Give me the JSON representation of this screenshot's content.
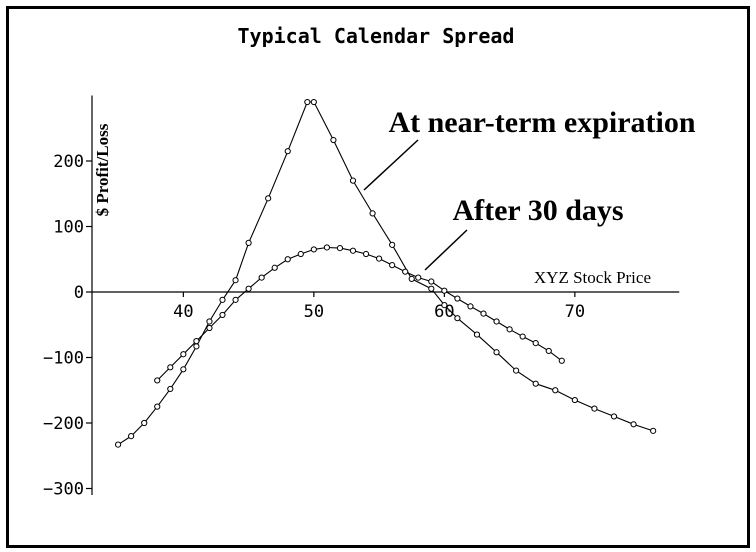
{
  "chart_data": {
    "type": "line",
    "title": "Typical Calendar Spread",
    "xlabel": "XYZ Stock Price",
    "ylabel": "$ Profit/Loss",
    "xlim": [
      33,
      78
    ],
    "ylim": [
      -310,
      300
    ],
    "xticks": [
      40,
      50,
      60,
      70
    ],
    "yticks": [
      200,
      100,
      0,
      -100,
      -200,
      -300
    ],
    "series": [
      {
        "name": "At near-term expiration",
        "x": [
          35,
          36,
          37,
          38,
          39,
          40,
          41,
          42,
          43,
          44,
          45,
          46.5,
          48,
          49.5,
          50,
          51.5,
          53,
          54.5,
          56,
          57.5,
          59,
          60,
          61,
          62.5,
          64,
          65.5,
          67,
          68.5,
          70,
          71.5,
          73,
          74.5,
          76
        ],
        "y": [
          -233,
          -220,
          -200,
          -175,
          -148,
          -118,
          -83,
          -45,
          -12,
          18,
          75,
          143,
          215,
          290,
          290,
          232,
          170,
          120,
          72,
          20,
          5,
          -20,
          -40,
          -65,
          -92,
          -120,
          -140,
          -150,
          -165,
          -178,
          -190,
          -202,
          -212
        ]
      },
      {
        "name": "After 30 days",
        "x": [
          38,
          39,
          40,
          41,
          42,
          43,
          44,
          45,
          46,
          47,
          48,
          49,
          50,
          51,
          52,
          53,
          54,
          55,
          56,
          57,
          58,
          59,
          60,
          61,
          62,
          63,
          64,
          65,
          66,
          67,
          68,
          69
        ],
        "y": [
          -135,
          -115,
          -95,
          -75,
          -55,
          -35,
          -12,
          5,
          22,
          37,
          50,
          58,
          65,
          68,
          67,
          63,
          58,
          51,
          41,
          31,
          22,
          16,
          2,
          -10,
          -22,
          -33,
          -45,
          -57,
          -68,
          -78,
          -90,
          -105
        ]
      }
    ],
    "annotations": [
      {
        "text": "At near-term expiration",
        "series": 0
      },
      {
        "text": "After 30 days",
        "series": 1
      }
    ],
    "grid": false,
    "legend": "none"
  }
}
